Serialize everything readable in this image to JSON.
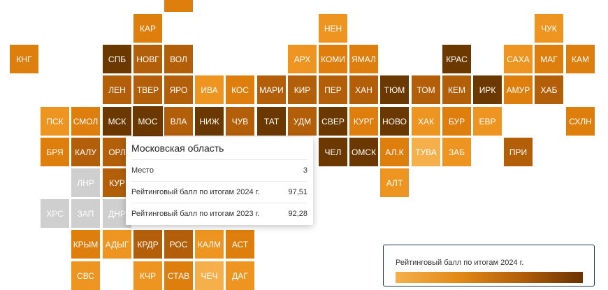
{
  "colors": {
    "c1": "#f5b04b",
    "c2": "#ed9520",
    "c3": "#de7e0c",
    "c4": "#b35f0a",
    "c5": "#6b3800",
    "gray": "#cfcfcf"
  },
  "regions": [
    {
      "label": "",
      "col": 5,
      "row": -1,
      "c": "c3"
    },
    {
      "label": "КАР",
      "col": 4,
      "row": 0,
      "c": "c3"
    },
    {
      "label": "НЕН",
      "col": 10,
      "row": 0,
      "c": "c2"
    },
    {
      "label": "ЧУК",
      "col": 17,
      "row": 0,
      "c": "c2"
    },
    {
      "label": "КНГ",
      "col": 0,
      "row": 1,
      "c": "c3"
    },
    {
      "label": "СПБ",
      "col": 3,
      "row": 1,
      "c": "c5"
    },
    {
      "label": "НОВГ",
      "col": 4,
      "row": 1,
      "c": "c4"
    },
    {
      "label": "ВОЛ",
      "col": 5,
      "row": 1,
      "c": "c4"
    },
    {
      "label": "АРХ",
      "col": 9,
      "row": 1,
      "c": "c2"
    },
    {
      "label": "КОМИ",
      "col": 10,
      "row": 1,
      "c": "c3"
    },
    {
      "label": "ЯМАЛ",
      "col": 11,
      "row": 1,
      "c": "c3"
    },
    {
      "label": "КРАС",
      "col": 14,
      "row": 1,
      "c": "c5"
    },
    {
      "label": "САХА",
      "col": 16,
      "row": 1,
      "c": "c2"
    },
    {
      "label": "МАГ",
      "col": 17,
      "row": 1,
      "c": "c3"
    },
    {
      "label": "КАМ",
      "col": 18,
      "row": 1,
      "c": "c3"
    },
    {
      "label": "ЛЕН",
      "col": 3,
      "row": 2,
      "c": "c4"
    },
    {
      "label": "ТВЕР",
      "col": 4,
      "row": 2,
      "c": "c4"
    },
    {
      "label": "ЯРО",
      "col": 5,
      "row": 2,
      "c": "c4"
    },
    {
      "label": "ИВА",
      "col": 6,
      "row": 2,
      "c": "c2"
    },
    {
      "label": "КОС",
      "col": 7,
      "row": 2,
      "c": "c3"
    },
    {
      "label": "МАРИ",
      "col": 8,
      "row": 2,
      "c": "c4"
    },
    {
      "label": "КИР",
      "col": 9,
      "row": 2,
      "c": "c4"
    },
    {
      "label": "ПЕР",
      "col": 10,
      "row": 2,
      "c": "c4"
    },
    {
      "label": "ХАН",
      "col": 11,
      "row": 2,
      "c": "c4"
    },
    {
      "label": "ТЮМ",
      "col": 12,
      "row": 2,
      "c": "c5"
    },
    {
      "label": "ТОМ",
      "col": 13,
      "row": 2,
      "c": "c4"
    },
    {
      "label": "КЕМ",
      "col": 14,
      "row": 2,
      "c": "c4"
    },
    {
      "label": "ИРК",
      "col": 15,
      "row": 2,
      "c": "c5"
    },
    {
      "label": "АМУР",
      "col": 16,
      "row": 2,
      "c": "c3"
    },
    {
      "label": "ХАБ",
      "col": 17,
      "row": 2,
      "c": "c4"
    },
    {
      "label": "ПСК",
      "col": 1,
      "row": 3,
      "c": "c2"
    },
    {
      "label": "СМОЛ",
      "col": 2,
      "row": 3,
      "c": "c3"
    },
    {
      "label": "МСК",
      "col": 3,
      "row": 3,
      "c": "c5"
    },
    {
      "label": "МОС",
      "col": 4,
      "row": 3,
      "c": "c5",
      "active": true
    },
    {
      "label": "ВЛА",
      "col": 5,
      "row": 3,
      "c": "c4"
    },
    {
      "label": "НИЖ",
      "col": 6,
      "row": 3,
      "c": "c5"
    },
    {
      "label": "ЧУВ",
      "col": 7,
      "row": 3,
      "c": "c4"
    },
    {
      "label": "ТАТ",
      "col": 8,
      "row": 3,
      "c": "c5"
    },
    {
      "label": "УДМ",
      "col": 9,
      "row": 3,
      "c": "c4"
    },
    {
      "label": "СВЕР",
      "col": 10,
      "row": 3,
      "c": "c5"
    },
    {
      "label": "КУРГ",
      "col": 11,
      "row": 3,
      "c": "c3"
    },
    {
      "label": "НОВО",
      "col": 12,
      "row": 3,
      "c": "c5"
    },
    {
      "label": "ХАК",
      "col": 13,
      "row": 3,
      "c": "c2"
    },
    {
      "label": "БУР",
      "col": 14,
      "row": 3,
      "c": "c3"
    },
    {
      "label": "ЕВР",
      "col": 15,
      "row": 3,
      "c": "c2"
    },
    {
      "label": "СХЛН",
      "col": 18,
      "row": 3,
      "c": "c3"
    },
    {
      "label": "БРЯ",
      "col": 1,
      "row": 4,
      "c": "c3"
    },
    {
      "label": "КАЛУ",
      "col": 2,
      "row": 4,
      "c": "c4"
    },
    {
      "label": "ОРЛ",
      "col": 3,
      "row": 4,
      "c": "c4"
    },
    {
      "label": "ЧЕЛ",
      "col": 10,
      "row": 4,
      "c": "c5"
    },
    {
      "label": "ОМСК",
      "col": 11,
      "row": 4,
      "c": "c5"
    },
    {
      "label": "АЛ.К",
      "col": 12,
      "row": 4,
      "c": "c3"
    },
    {
      "label": "ТУВА",
      "col": 13,
      "row": 4,
      "c": "c1"
    },
    {
      "label": "ЗАБ",
      "col": 14,
      "row": 4,
      "c": "c2"
    },
    {
      "label": "ПРИ",
      "col": 16,
      "row": 4,
      "c": "c4"
    },
    {
      "label": "ЛНР",
      "col": 2,
      "row": 5,
      "c": "gray"
    },
    {
      "label": "КУР",
      "col": 3,
      "row": 5,
      "c": "c4"
    },
    {
      "label": "АЛТ",
      "col": 12,
      "row": 5,
      "c": "c2"
    },
    {
      "label": "ХРС",
      "col": 1,
      "row": 6,
      "c": "gray"
    },
    {
      "label": "ЗАП",
      "col": 2,
      "row": 6,
      "c": "gray"
    },
    {
      "label": "ДНР",
      "col": 3,
      "row": 6,
      "c": "gray"
    },
    {
      "label": "КРЫМ",
      "col": 2,
      "row": 7,
      "c": "c3"
    },
    {
      "label": "АДЫГ",
      "col": 3,
      "row": 7,
      "c": "c2"
    },
    {
      "label": "КРДР",
      "col": 4,
      "row": 7,
      "c": "c4"
    },
    {
      "label": "РОС",
      "col": 5,
      "row": 7,
      "c": "c4"
    },
    {
      "label": "КАЛМ",
      "col": 6,
      "row": 7,
      "c": "c2"
    },
    {
      "label": "АСТ",
      "col": 7,
      "row": 7,
      "c": "c3"
    },
    {
      "label": "СВС",
      "col": 2,
      "row": 8,
      "c": "c2"
    },
    {
      "label": "КЧР",
      "col": 4,
      "row": 8,
      "c": "c2"
    },
    {
      "label": "СТАВ",
      "col": 5,
      "row": 8,
      "c": "c3"
    },
    {
      "label": "ЧЕЧ",
      "col": 6,
      "row": 8,
      "c": "c1"
    },
    {
      "label": "ДАГ",
      "col": 7,
      "row": 8,
      "c": "c2"
    }
  ],
  "tooltip": {
    "title": "Московская область",
    "rows": [
      {
        "label": "Место",
        "value": "3"
      },
      {
        "label": "Рейтинговый балл по итогам 2024 г.",
        "value": "97,51"
      },
      {
        "label": "Рейтинговый балл по итогам 2023 г.",
        "value": "92,28"
      }
    ]
  },
  "legend": {
    "title": "Рейтинговый балл по итогам 2024 г."
  }
}
